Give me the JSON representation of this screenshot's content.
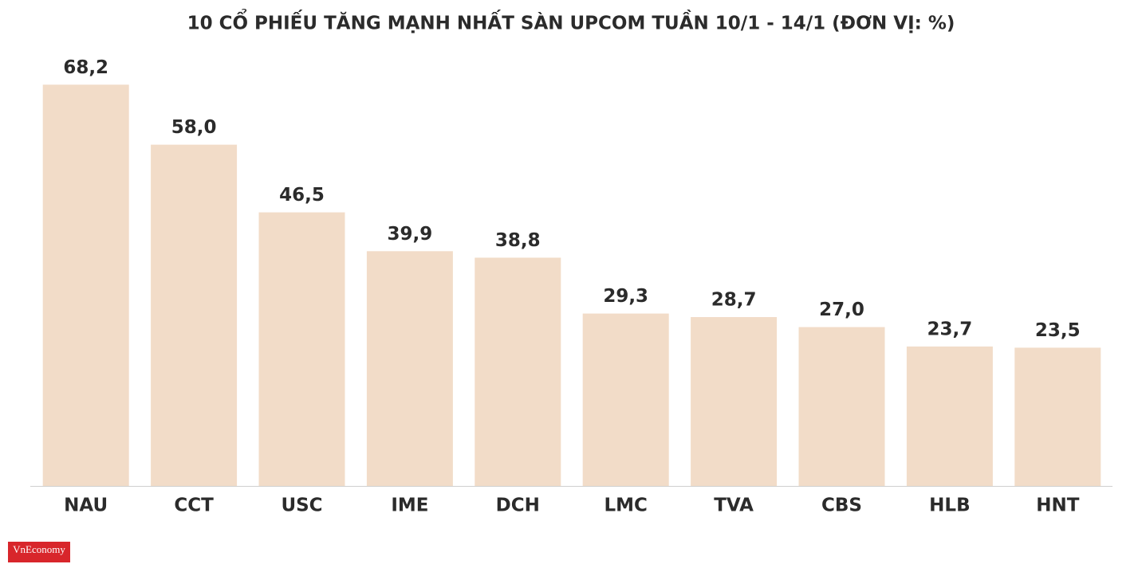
{
  "chart_data": {
    "type": "bar",
    "title": "10 CỔ PHIẾU TĂNG MẠNH NHẤT SÀN UPCOM TUẦN 10/1 - 14/1 (ĐƠN VỊ: %)",
    "categories": [
      "NAU",
      "CCT",
      "USC",
      "IME",
      "DCH",
      "LMC",
      "TVA",
      "CBS",
      "HLB",
      "HNT"
    ],
    "values": [
      68.2,
      58.0,
      46.5,
      39.9,
      38.8,
      29.3,
      28.7,
      27.0,
      23.7,
      23.5
    ],
    "value_labels": [
      "68,2",
      "58,0",
      "46,5",
      "39,9",
      "38,8",
      "29,3",
      "28,7",
      "27,0",
      "23,7",
      "23,5"
    ],
    "color": "#f2dcc8",
    "ylim": [
      0,
      70
    ]
  },
  "logo": {
    "text": "VnEconomy"
  }
}
